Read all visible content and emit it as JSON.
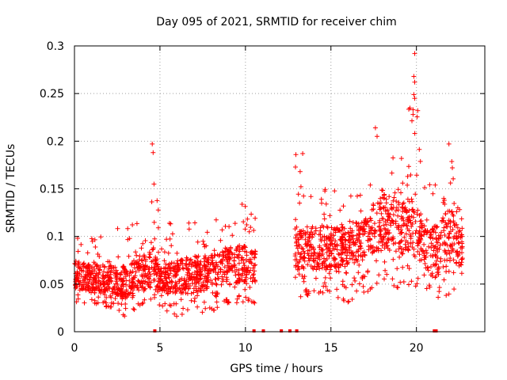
{
  "chart_data": {
    "type": "scatter",
    "title": "Day 095 of 2021, SRMTID for receiver chim",
    "xlabel": "GPS time / hours",
    "ylabel": "SRMTID / TECUs",
    "xlim": [
      0,
      24
    ],
    "ylim": [
      0,
      0.3
    ],
    "x_ticks": [
      0,
      5,
      10,
      15,
      20
    ],
    "x_tick_labels": [
      "0",
      "5",
      "10",
      "15",
      "20"
    ],
    "y_ticks": [
      0,
      0.05,
      0.1,
      0.15,
      0.2,
      0.25,
      0.3
    ],
    "y_tick_labels": [
      "0",
      "0.05",
      "0.1",
      "0.15",
      "0.2",
      "0.25",
      "0.3"
    ],
    "grid": true,
    "marker": "+",
    "color": "#ff0000",
    "envelope_description": "approximate band of scattered points (hour, low, high, dense_low, dense_high)",
    "envelope": [
      [
        0.0,
        0.03,
        0.11,
        0.045,
        0.075
      ],
      [
        1.0,
        0.03,
        0.1,
        0.04,
        0.07
      ],
      [
        2.0,
        0.025,
        0.1,
        0.04,
        0.07
      ],
      [
        3.0,
        0.015,
        0.12,
        0.035,
        0.07
      ],
      [
        4.0,
        0.03,
        0.13,
        0.045,
        0.08
      ],
      [
        4.6,
        0.03,
        0.195,
        0.045,
        0.09
      ],
      [
        5.0,
        0.025,
        0.11,
        0.04,
        0.07
      ],
      [
        6.0,
        0.015,
        0.12,
        0.04,
        0.075
      ],
      [
        7.0,
        0.02,
        0.12,
        0.04,
        0.08
      ],
      [
        8.0,
        0.02,
        0.12,
        0.045,
        0.08
      ],
      [
        9.0,
        0.03,
        0.14,
        0.05,
        0.09
      ],
      [
        10.0,
        0.03,
        0.14,
        0.05,
        0.09
      ],
      [
        10.5,
        0.03,
        0.12,
        0.05,
        0.085
      ],
      [
        13.0,
        0.035,
        0.185,
        0.065,
        0.11
      ],
      [
        14.0,
        0.04,
        0.15,
        0.065,
        0.11
      ],
      [
        15.0,
        0.04,
        0.15,
        0.065,
        0.11
      ],
      [
        16.0,
        0.03,
        0.14,
        0.07,
        0.11
      ],
      [
        17.0,
        0.04,
        0.16,
        0.075,
        0.12
      ],
      [
        18.0,
        0.055,
        0.2,
        0.085,
        0.15
      ],
      [
        19.0,
        0.045,
        0.18,
        0.08,
        0.14
      ],
      [
        19.8,
        0.05,
        0.29,
        0.08,
        0.14
      ],
      [
        20.5,
        0.04,
        0.16,
        0.07,
        0.12
      ],
      [
        21.0,
        0.03,
        0.15,
        0.055,
        0.11
      ],
      [
        22.0,
        0.04,
        0.195,
        0.07,
        0.13
      ],
      [
        22.7,
        0.05,
        0.12,
        0.07,
        0.1
      ]
    ],
    "data_gap": [
      10.6,
      12.9
    ],
    "spikes": [
      {
        "x": 4.55,
        "y": 0.197
      },
      {
        "x": 4.6,
        "y": 0.188
      },
      {
        "x": 4.65,
        "y": 0.155
      },
      {
        "x": 12.95,
        "y": 0.186
      },
      {
        "x": 13.35,
        "y": 0.187
      },
      {
        "x": 13.2,
        "y": 0.168
      },
      {
        "x": 17.6,
        "y": 0.214
      },
      {
        "x": 17.7,
        "y": 0.205
      },
      {
        "x": 19.9,
        "y": 0.292
      },
      {
        "x": 19.85,
        "y": 0.268
      },
      {
        "x": 19.9,
        "y": 0.262
      },
      {
        "x": 19.85,
        "y": 0.249
      },
      {
        "x": 19.9,
        "y": 0.245
      },
      {
        "x": 19.8,
        "y": 0.233
      },
      {
        "x": 19.8,
        "y": 0.228
      },
      {
        "x": 21.9,
        "y": 0.197
      },
      {
        "x": 22.1,
        "y": 0.172
      }
    ],
    "zero_markers_x": [
      4.7,
      10.5,
      11.05,
      12.1,
      12.6,
      13.0,
      21.05,
      21.15
    ]
  }
}
